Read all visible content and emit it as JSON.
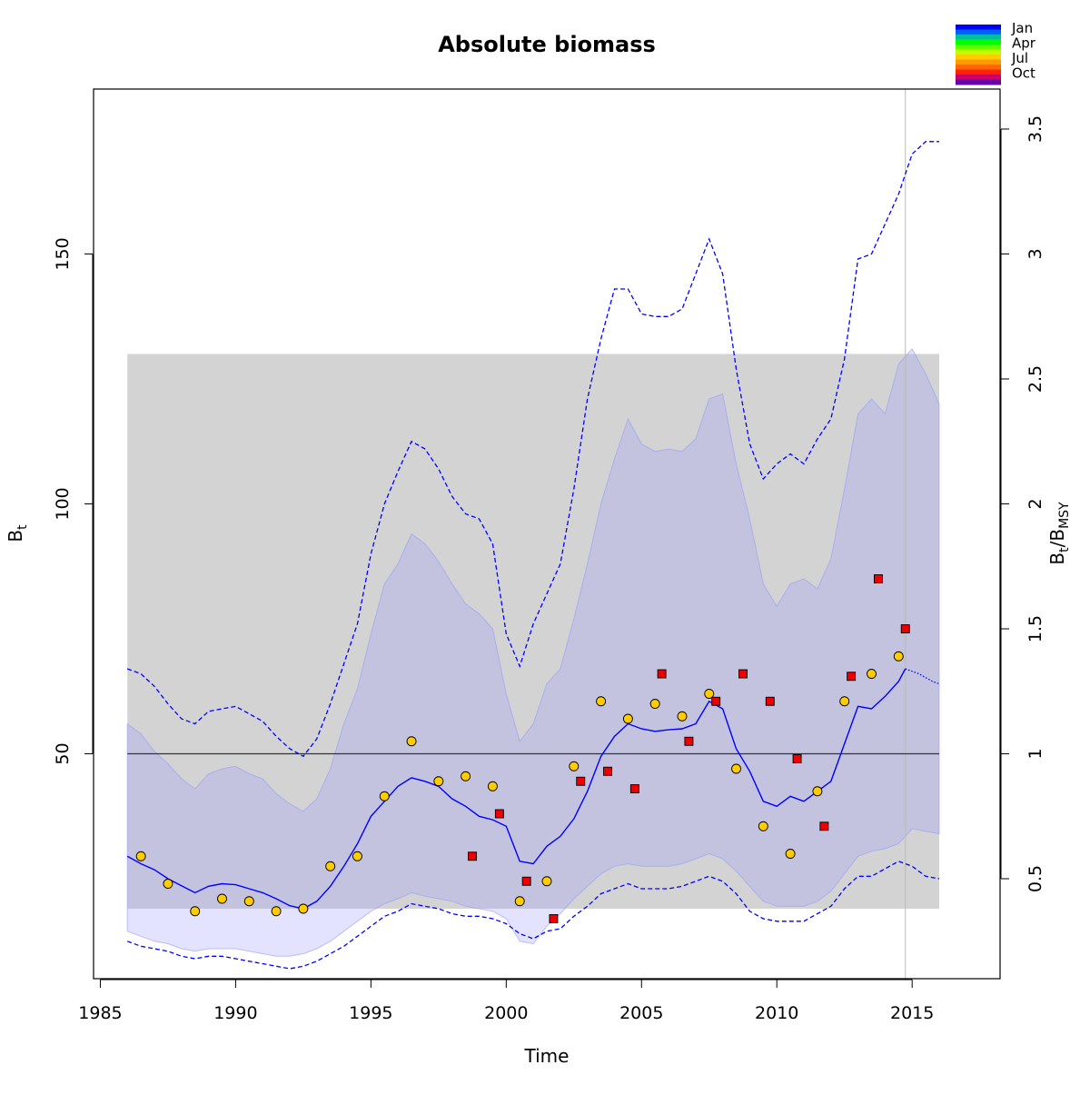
{
  "chart_data": {
    "type": "line",
    "title": "Absolute biomass",
    "xlabel": "Time",
    "ylabel": "B",
    "ylabel_subscript": "t",
    "y2label": "B",
    "y2label_subscript": "t",
    "y2label_denominator": "B",
    "y2label_denominator_subscript": "MSY",
    "y2label_separator": "/",
    "xlim": [
      1984.75,
      2018.25
    ],
    "ylim": [
      5,
      183
    ],
    "y2_scale_divisor": 50,
    "x_ticks": [
      1985,
      1990,
      1995,
      2000,
      2005,
      2010,
      2015
    ],
    "x_tick_labels": [
      "1985",
      "1990",
      "1995",
      "2000",
      "2005",
      "2010",
      "2015"
    ],
    "y_ticks": [
      50,
      100,
      150
    ],
    "y_tick_labels": [
      "50",
      "100",
      "150"
    ],
    "y2_ticks": [
      0.5,
      1,
      1.5,
      2,
      2.5,
      3,
      3.5
    ],
    "y2_tick_labels": [
      "0.5",
      "1",
      "1.5",
      "2",
      "2.5",
      "3",
      "3.5"
    ],
    "colors": {
      "median_line": "#0000ff",
      "ci_fill": "#9999ff",
      "bmsy_band": "#d3d3d3",
      "reference_line": "#333333",
      "index1_points": "#ffcc00",
      "index2_points": "#ee0000",
      "current_time_line": "#bbbbbb"
    },
    "reference_line": {
      "y": 50
    },
    "current_time": 2014.75,
    "bmsy_band": {
      "x": [
        1986,
        2016
      ],
      "y": [
        19,
        130
      ]
    },
    "median": {
      "x": [
        1986,
        1986.5,
        1987,
        1987.5,
        1988,
        1988.5,
        1989,
        1989.5,
        1990,
        1990.5,
        1991,
        1991.5,
        1992,
        1992.5,
        1993,
        1993.5,
        1994,
        1994.5,
        1995,
        1995.5,
        1996,
        1996.5,
        1997,
        1997.5,
        1998,
        1998.5,
        1999,
        1999.5,
        2000,
        2000.5,
        2001,
        2001.5,
        2002,
        2002.5,
        2003,
        2003.5,
        2004,
        2004.5,
        2005,
        2005.5,
        2006,
        2006.5,
        2007,
        2007.5,
        2008,
        2008.5,
        2009,
        2009.5,
        2010,
        2010.5,
        2011,
        2011.5,
        2012,
        2012.5,
        2013,
        2013.5,
        2014,
        2014.5,
        2014.75
      ],
      "y": [
        29.5,
        28,
        26.8,
        25,
        23.6,
        22.2,
        23.5,
        24,
        23.8,
        23,
        22.2,
        21,
        19.6,
        19,
        20.5,
        23.5,
        27.5,
        32,
        37.5,
        40.5,
        43.5,
        45.2,
        44.5,
        43.5,
        41,
        39.5,
        37.5,
        36.8,
        35.5,
        28.5,
        28,
        31.5,
        33.5,
        37,
        42.5,
        49.5,
        53.5,
        56,
        55,
        54.5,
        54.8,
        55,
        56,
        60.5,
        59,
        51,
        46.5,
        40.5,
        39.5,
        41.5,
        40.5,
        42.5,
        44.5,
        52,
        59.5,
        59,
        61.5,
        64.5,
        67
      ]
    },
    "median_projection": {
      "x": [
        2014.75,
        2015.25,
        2015.75,
        2016
      ],
      "y": [
        67,
        66,
        64.5,
        64
      ]
    },
    "ci_band": {
      "x": [
        1986,
        1986.5,
        1987,
        1987.5,
        1988,
        1988.5,
        1989,
        1989.5,
        1990,
        1990.5,
        1991,
        1991.5,
        1992,
        1992.5,
        1993,
        1993.5,
        1994,
        1994.5,
        1995,
        1995.5,
        1996,
        1996.5,
        1997,
        1997.5,
        1998,
        1998.5,
        1999,
        1999.5,
        2000,
        2000.5,
        2001,
        2001.5,
        2002,
        2002.5,
        2003,
        2003.5,
        2004,
        2004.5,
        2005,
        2005.5,
        2006,
        2006.5,
        2007,
        2007.5,
        2008,
        2008.5,
        2009,
        2009.5,
        2010,
        2010.5,
        2011,
        2011.5,
        2012,
        2012.5,
        2013,
        2013.5,
        2014,
        2014.5,
        2015,
        2015.5,
        2016
      ],
      "upper": [
        56,
        54,
        50.5,
        48,
        45,
        43,
        46,
        47,
        47.5,
        46,
        45,
        42,
        40,
        38.5,
        41,
        47,
        56,
        63,
        74,
        84,
        88,
        94,
        92,
        88.5,
        84,
        80,
        78,
        75,
        62,
        52.5,
        56,
        64,
        67,
        77,
        88,
        100,
        109,
        117,
        112,
        110.5,
        111,
        110.5,
        113,
        121,
        122,
        108,
        97,
        84,
        79.5,
        84,
        85,
        83,
        89,
        103,
        118,
        121,
        118,
        128,
        131,
        126,
        120
      ],
      "lower": [
        14.5,
        13.5,
        12.5,
        12,
        11,
        10.5,
        11,
        11,
        11,
        10.5,
        10,
        9.5,
        9.5,
        10,
        11,
        12.5,
        14.5,
        16.5,
        18.5,
        20,
        21,
        22.2,
        21.5,
        21,
        20.5,
        19.5,
        19,
        18.5,
        17,
        12.5,
        12,
        15.5,
        18,
        21,
        23.5,
        26,
        27.5,
        28,
        27.5,
        27.5,
        27.5,
        28,
        29,
        30,
        29,
        26.5,
        23.5,
        20.5,
        19.5,
        19.5,
        19.5,
        20.5,
        22.5,
        26,
        29.5,
        30.5,
        31,
        32,
        35,
        34.5,
        34
      ]
    },
    "prediction_interval": {
      "x": [
        1986,
        1986.5,
        1987,
        1987.5,
        1988,
        1988.5,
        1989,
        1989.5,
        1990,
        1990.5,
        1991,
        1991.5,
        1992,
        1992.5,
        1993,
        1993.5,
        1994,
        1994.5,
        1995,
        1995.5,
        1996,
        1996.5,
        1997,
        1997.5,
        1998,
        1998.5,
        1999,
        1999.5,
        2000,
        2000.5,
        2001,
        2001.5,
        2002,
        2002.5,
        2003,
        2003.5,
        2004,
        2004.5,
        2005,
        2005.5,
        2006,
        2006.5,
        2007,
        2007.5,
        2008,
        2008.5,
        2009,
        2009.5,
        2010,
        2010.5,
        2011,
        2011.5,
        2012,
        2012.5,
        2013,
        2013.5,
        2014,
        2014.5,
        2015,
        2015.5,
        2016
      ],
      "upper": [
        67,
        66,
        63.5,
        60,
        57,
        56,
        58.5,
        59,
        59.5,
        58,
        56.5,
        53.5,
        51,
        49.5,
        53,
        60,
        68,
        76,
        90,
        100,
        106.5,
        112.5,
        111,
        107,
        101.5,
        98,
        97,
        92,
        74,
        67.5,
        76,
        82,
        88,
        103,
        121,
        133,
        143,
        143,
        138,
        137.5,
        137.5,
        139,
        146,
        153,
        146,
        127,
        112,
        105,
        108,
        110,
        108,
        113,
        117,
        129,
        149,
        150,
        156,
        162,
        170,
        172.5,
        172.5
      ],
      "lower": [
        12.5,
        11.5,
        11,
        10.5,
        9.5,
        9,
        9.5,
        9.5,
        9,
        8.5,
        8,
        7.5,
        7,
        7.5,
        8.5,
        10,
        11.5,
        13.5,
        15.5,
        17.5,
        18.5,
        20,
        19.5,
        19,
        18,
        17.5,
        17.5,
        17,
        16,
        14,
        13,
        14.5,
        15,
        17.5,
        19.5,
        22,
        23,
        24,
        23,
        23,
        23,
        23.5,
        24.5,
        25.5,
        24.5,
        22,
        18.5,
        17,
        16.5,
        16.5,
        16.5,
        18,
        19.5,
        23,
        25.5,
        25.5,
        27,
        28.5,
        27.5,
        25.5,
        25
      ]
    },
    "index1_points": {
      "x": [
        1986.5,
        1987.5,
        1988.5,
        1989.5,
        1990.5,
        1991.5,
        1992.5,
        1993.5,
        1994.5,
        1995.5,
        1996.5,
        1997.5,
        1998.5,
        1999.5,
        2000.5,
        2001.5,
        2002.5,
        2003.5,
        2004.5,
        2005.5,
        2006.5,
        2007.5,
        2008.5,
        2009.5,
        2010.5,
        2011.5,
        2012.5,
        2013.5,
        2014.5
      ],
      "y": [
        29.5,
        24,
        18.5,
        21,
        20.5,
        18.5,
        19,
        27.5,
        29.5,
        41.5,
        52.5,
        44.5,
        45.5,
        43.5,
        20.5,
        24.5,
        47.5,
        60.5,
        57,
        60,
        57.5,
        62,
        47,
        35.5,
        30,
        42.5,
        60.5,
        66,
        69.5
      ]
    },
    "index2_points": {
      "x": [
        1998.75,
        1999.75,
        2000.75,
        2001.75,
        2002.75,
        2003.75,
        2004.75,
        2005.75,
        2006.75,
        2007.75,
        2008.75,
        2009.75,
        2010.75,
        2011.75,
        2012.75,
        2013.75,
        2014.75
      ],
      "y": [
        29.5,
        38,
        24.5,
        17,
        44.5,
        46.5,
        43,
        66,
        52.5,
        60.5,
        66,
        60.5,
        49,
        35.5,
        65.5,
        85,
        75
      ]
    },
    "legend": {
      "placement": "top-right",
      "labels": [
        "Jan",
        "Apr",
        "Jul",
        "Oct"
      ],
      "colors": [
        "#0000ff",
        "#005fff",
        "#00bfa0",
        "#00ff00",
        "#60ff00",
        "#bfff00",
        "#ffcc00",
        "#ff9900",
        "#ff6600",
        "#ff2200",
        "#cc0066",
        "#6600aa"
      ]
    }
  }
}
